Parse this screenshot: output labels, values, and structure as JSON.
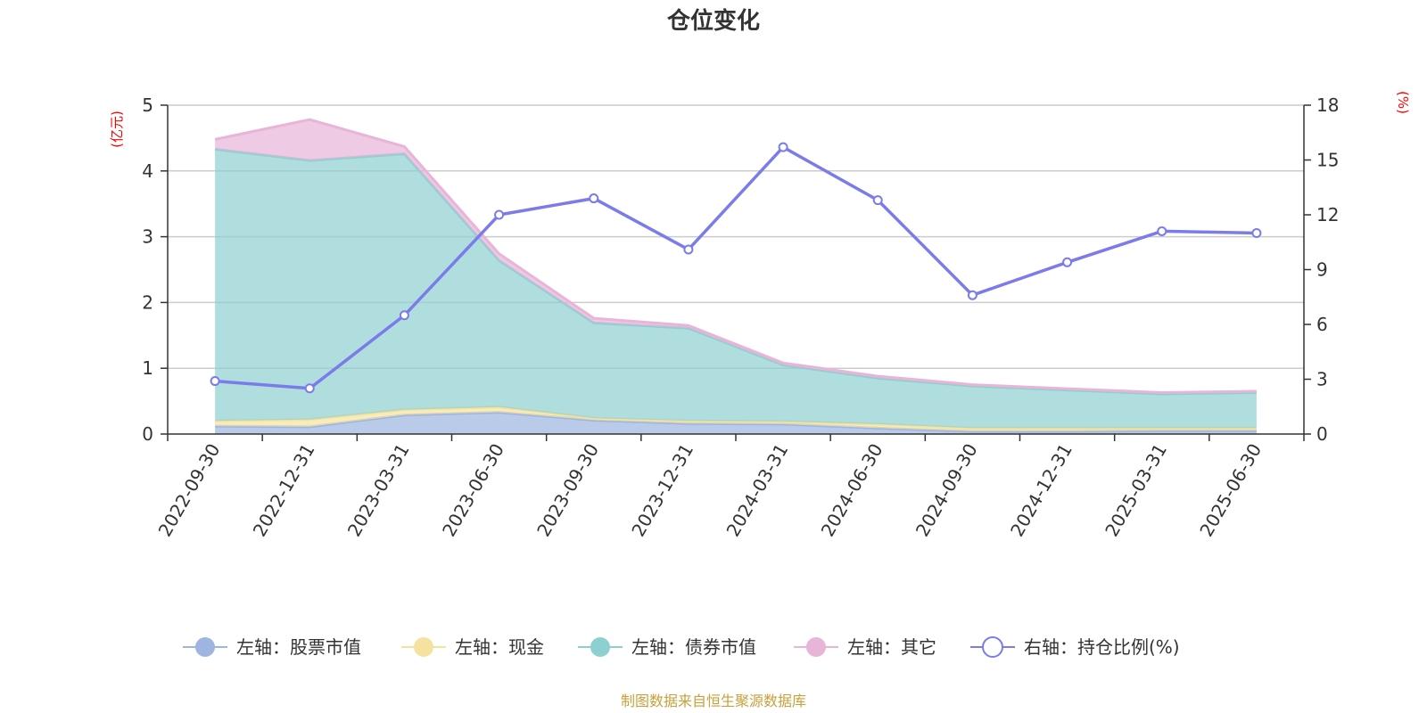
{
  "chart_data": {
    "type": "area",
    "title": "仓位变化",
    "y_left_unit": "(亿元)",
    "y_right_unit": "(%)",
    "categories": [
      "2022-09-30",
      "2022-12-31",
      "2023-03-31",
      "2023-06-30",
      "2023-09-30",
      "2023-12-31",
      "2024-03-31",
      "2024-06-30",
      "2024-09-30",
      "2024-12-31",
      "2025-03-31",
      "2025-06-30"
    ],
    "y_left_range": [
      0,
      5
    ],
    "y_left_ticks": [
      "0",
      "1",
      "2",
      "3",
      "4",
      "5"
    ],
    "y_right_range": [
      0,
      18
    ],
    "y_right_ticks": [
      "0",
      "3",
      "6",
      "9",
      "12",
      "15",
      "18"
    ],
    "stacked": true,
    "grid": true,
    "legend_position": "bottom",
    "series": [
      {
        "name": "左轴：股票市值",
        "axis": "left",
        "type": "area",
        "color": "#9db5e0",
        "values": [
          0.12,
          0.11,
          0.29,
          0.33,
          0.21,
          0.16,
          0.15,
          0.09,
          0.04,
          0.04,
          0.05,
          0.05
        ]
      },
      {
        "name": "左轴：现金",
        "axis": "left",
        "type": "area",
        "color": "#f5e2a0",
        "values": [
          0.08,
          0.11,
          0.08,
          0.08,
          0.03,
          0.04,
          0.04,
          0.06,
          0.05,
          0.05,
          0.04,
          0.04
        ]
      },
      {
        "name": "左轴：债券市值",
        "axis": "left",
        "type": "area",
        "color": "#8ed0d0",
        "values": [
          4.13,
          3.94,
          3.89,
          2.23,
          1.45,
          1.41,
          0.86,
          0.7,
          0.64,
          0.58,
          0.52,
          0.54
        ]
      },
      {
        "name": "左轴：其它",
        "axis": "left",
        "type": "area",
        "color": "#e8b4d8",
        "values": [
          0.15,
          0.62,
          0.11,
          0.1,
          0.07,
          0.04,
          0.03,
          0.03,
          0.02,
          0.02,
          0.02,
          0.02
        ]
      },
      {
        "name": "右轴：持仓比例(%)",
        "axis": "right",
        "type": "line",
        "color": "#7b7bea",
        "values": [
          2.9,
          2.5,
          6.5,
          12.0,
          12.9,
          10.1,
          15.7,
          12.8,
          7.6,
          9.4,
          11.1,
          11.0
        ]
      }
    ],
    "source_note": "制图数据来自恒生聚源数据库"
  }
}
